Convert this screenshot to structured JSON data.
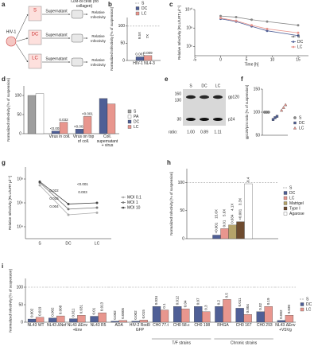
{
  "schematic": {
    "panel": "a",
    "virus": "HIV-1",
    "conditions": [
      "S",
      "DC",
      "LC"
    ],
    "transfer": "Supernatant",
    "target": "TZM-bl cells (no collagen)",
    "readout": "Relative Infectivity"
  },
  "blot": {
    "panel": "e",
    "lanes": [
      "S",
      "DC",
      "LC"
    ],
    "markers": [
      160,
      130,
      30
    ],
    "bands": [
      "gp120",
      "p24"
    ],
    "ratio_label": "ratio:",
    "ratios": [
      "1.00",
      "0.89",
      "1.11"
    ]
  },
  "chart_data": [
    {
      "type": "bar",
      "panel": "b",
      "y_label": "Normalized Infectivity [% of suspension]",
      "categories": [
        "HIV-1 NL4-3"
      ],
      "series": [
        {
          "name": "S",
          "color": "#9e9e9e",
          "style": "dashed",
          "values": [
            100
          ]
        },
        {
          "name": "DC",
          "color": "#4f5f96",
          "values": [
            10.5
          ],
          "p_values": [
            "0.001"
          ],
          "fold_changes": [
            "9.5X"
          ]
        },
        {
          "name": "LC",
          "color": "#e8968e",
          "values": [
            14.3
          ],
          "p_values": [
            "0.009"
          ],
          "fold_changes": [
            "7X"
          ]
        }
      ],
      "ylim": [
        0,
        125
      ],
      "yticks": [
        0,
        50,
        100
      ]
    },
    {
      "type": "line",
      "panel": "c",
      "y_label": "Relative Infectivity [RLU/URT µl⁻¹]",
      "x_label": "Time [h]",
      "x": [
        0,
        3,
        6,
        9,
        15
      ],
      "series": [
        {
          "name": "S",
          "color": "#888888",
          "values": [
            2000000000,
            1500000000,
            800000000,
            500000000,
            200000000
          ]
        },
        {
          "name": "DC",
          "color": "#4f5f96",
          "values": [
            1000000000,
            500000000,
            150000000,
            50000000,
            15000000
          ]
        },
        {
          "name": "LC",
          "color": "#e8968e",
          "values": [
            1200000000,
            600000000,
            200000000,
            80000000,
            30000000
          ]
        }
      ],
      "xlim": [
        -5,
        17
      ],
      "xticks": [
        -5,
        0,
        5,
        10,
        15
      ],
      "log_y": true,
      "ylim": [
        100000,
        10000000000
      ],
      "yticks": [
        {
          "value": 1000000,
          "label": "10⁶"
        },
        {
          "value": 100000000,
          "label": "10⁸"
        },
        {
          "value": 10000000000,
          "label": "10¹⁰"
        }
      ]
    },
    {
      "type": "bar",
      "panel": "d",
      "y_label": "Normalized Infectivity [% of suspension]",
      "categories": [
        null,
        "Virus in coll.",
        "Virus on top of coll.",
        "Coll. supernatant + virus"
      ],
      "series": [
        {
          "name": "S",
          "color": "#9e9e9e",
          "values": [
            100,
            null,
            null,
            null
          ]
        },
        {
          "name": "PA",
          "color": "#ffffff",
          "values": [
            105,
            null,
            null,
            null
          ]
        },
        {
          "name": "DC",
          "color": "#4f5f96",
          "values": [
            null,
            7,
            12,
            92
          ],
          "p_values": [
            null,
            "<0.001",
            "<0.001",
            null
          ]
        },
        {
          "name": "LC",
          "color": "#e8968e",
          "values": [
            null,
            30,
            45,
            78
          ],
          "p_values": [
            null,
            "0.032",
            "<0.001",
            null
          ]
        }
      ],
      "ylim": [
        0,
        125
      ],
      "yticks": [
        0,
        50,
        100
      ]
    },
    {
      "type": "dot",
      "panel": "f",
      "y_label": "gp120/p24 ratio [% of suspension]",
      "categories": [
        "S",
        "DC",
        "LC"
      ],
      "colors": [
        "#888888",
        "#4f5f96",
        "#e8968e"
      ],
      "values": [
        [
          100,
          100,
          100
        ],
        [
          84,
          88,
          91
        ],
        [
          104,
          110,
          116
        ]
      ],
      "ylim": [
        50,
        150
      ],
      "yticks": [
        50,
        100,
        150
      ]
    },
    {
      "type": "line",
      "panel": "g",
      "y_label": "Relative Infectivity [RLU/URT µl⁻¹]",
      "categories": [
        "S",
        "DC",
        "LC"
      ],
      "series": [
        {
          "name": "MOI 0.1",
          "color": "#aaaaaa",
          "values": [
            30000000,
            100000,
            150000
          ]
        },
        {
          "name": "MOI 1",
          "color": "#777777",
          "values": [
            50000000,
            300000,
            400000
          ]
        },
        {
          "name": "MOI 10",
          "color": "#444444",
          "values": [
            60000000,
            800000,
            1000000
          ]
        }
      ],
      "log_y": true,
      "ylim": [
        1000,
        1000000000
      ],
      "yticks": [
        {
          "value": 10000,
          "label": "10⁴"
        },
        {
          "value": 1000000,
          "label": "10⁶"
        },
        {
          "value": 100000000,
          "label": "10⁸"
        }
      ],
      "p_values": [
        "0.022",
        "0.015",
        "0.004",
        "<0.001",
        "0.003"
      ]
    },
    {
      "type": "bar",
      "panel": "h",
      "y_label": "Normalized Infectivity [% of suspension]",
      "categories": [
        null
      ],
      "series": [
        {
          "name": "S",
          "color": "#9e9e9e",
          "style": "dashed",
          "values": [
            100
          ]
        },
        {
          "name": "DC",
          "color": "#4f5f96",
          "values": [
            6.4
          ],
          "p_values": [
            "<0.001"
          ],
          "fold_changes": [
            "15.6X"
          ]
        },
        {
          "name": "LC",
          "color": "#e8968e",
          "values": [
            17.9
          ],
          "p_values": [
            "0.01"
          ],
          "fold_changes": [
            "5.6X"
          ]
        },
        {
          "name": "Matrigel",
          "color": "#b5a36a",
          "values": [
            24.4
          ],
          "p_values": [
            "0.034"
          ],
          "fold_changes": [
            "4.1X"
          ]
        },
        {
          "name": "Type I",
          "color": "#6e4b2f",
          "values": [
            30.3
          ],
          "p_values": [
            "<0.001"
          ],
          "fold_changes": [
            "3.3X"
          ]
        },
        {
          "name": "Agarose",
          "color": "#ffffff",
          "values": [
            98
          ],
          "p_values": [
            "0.4"
          ]
        }
      ],
      "ylim": [
        0,
        125
      ],
      "yticks": [
        0,
        50,
        100
      ]
    },
    {
      "type": "bar",
      "panel": "i",
      "y_label": "Normalized Infectivity [% of suspension]",
      "categories": [
        "NL43 WT",
        "NL43 ΔNef",
        "NL43 ΔEnv +Env",
        "NL43 R5",
        "ADA",
        "HIV-2 Rod9 GFP",
        "CH0 77.t",
        "CH0 58.c",
        "CH0 198",
        "RHGA",
        "CH0 167",
        "CH0 293",
        "NL43 ΔEnv +VSVg"
      ],
      "group_labels": [
        "T/F strains",
        "Chronic strains"
      ],
      "series": [
        {
          "name": "S",
          "color": "#9e9e9e",
          "style": "dashed",
          "values": [
            100,
            100,
            100,
            100,
            100,
            100,
            100,
            100,
            100,
            100,
            100,
            100,
            100
          ]
        },
        {
          "name": "DC",
          "color": "#4f5f96",
          "values": [
            9,
            12,
            10,
            17,
            3,
            3,
            45,
            45,
            45,
            45,
            40,
            30,
            5
          ],
          "p_values": [
            "0.002",
            "0.002",
            "0.011",
            "0.01",
            "0.002",
            "0.002",
            "0.034",
            "0.012",
            "0.07",
            "0.2",
            "0.011",
            "0.02",
            "0.002"
          ]
        },
        {
          "name": "LC",
          "color": "#e8968e",
          "values": [
            14,
            18,
            20,
            27,
            5,
            6,
            35,
            38,
            30,
            65,
            22,
            45,
            20
          ],
          "p_values": [
            "0.019",
            "0.008",
            "0.031",
            "0.013",
            "0.0005",
            "0.015",
            "0.1",
            "0.04",
            "0.3",
            "0.5",
            "0.004",
            "0.19",
            "0.030"
          ]
        }
      ],
      "ylim": [
        0,
        125
      ],
      "yticks": [
        0,
        50,
        100
      ]
    }
  ]
}
